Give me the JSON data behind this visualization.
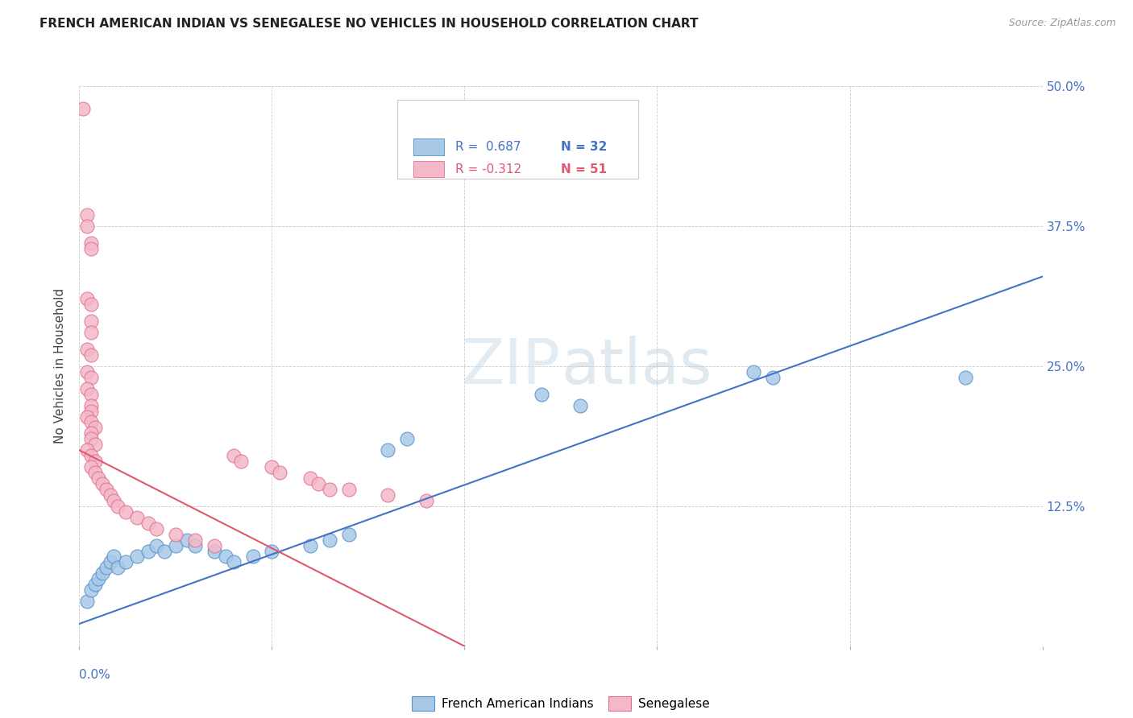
{
  "title": "FRENCH AMERICAN INDIAN VS SENEGALESE NO VEHICLES IN HOUSEHOLD CORRELATION CHART",
  "source": "Source: ZipAtlas.com",
  "ylabel": "No Vehicles in Household",
  "legend_blue_r": "0.687",
  "legend_blue_n": "32",
  "legend_pink_r": "-0.312",
  "legend_pink_n": "51",
  "legend_label_blue": "French American Indians",
  "legend_label_pink": "Senegalese",
  "blue_line_x": [
    0.0,
    0.25
  ],
  "blue_line_y": [
    0.02,
    0.33
  ],
  "pink_line_x": [
    0.0,
    0.1
  ],
  "pink_line_y": [
    0.175,
    0.0
  ],
  "blue_color": "#a8c8e8",
  "pink_color": "#f4b8c8",
  "blue_edge_color": "#5590c8",
  "pink_edge_color": "#e07090",
  "blue_line_color": "#4472c4",
  "pink_line_color": "#e05870",
  "text_color": "#4472c4",
  "watermark_color": "#d8e4f0",
  "xlim": [
    0.0,
    0.25
  ],
  "ylim": [
    0.0,
    0.5
  ],
  "xticks": [
    0.0,
    0.05,
    0.1,
    0.15,
    0.2,
    0.25
  ],
  "yticks": [
    0.0,
    0.125,
    0.25,
    0.375,
    0.5
  ],
  "blue_points": [
    [
      0.002,
      0.04
    ],
    [
      0.003,
      0.05
    ],
    [
      0.004,
      0.055
    ],
    [
      0.005,
      0.06
    ],
    [
      0.006,
      0.065
    ],
    [
      0.007,
      0.07
    ],
    [
      0.008,
      0.075
    ],
    [
      0.009,
      0.08
    ],
    [
      0.01,
      0.07
    ],
    [
      0.012,
      0.075
    ],
    [
      0.015,
      0.08
    ],
    [
      0.018,
      0.085
    ],
    [
      0.02,
      0.09
    ],
    [
      0.022,
      0.085
    ],
    [
      0.025,
      0.09
    ],
    [
      0.028,
      0.095
    ],
    [
      0.03,
      0.09
    ],
    [
      0.035,
      0.085
    ],
    [
      0.038,
      0.08
    ],
    [
      0.04,
      0.075
    ],
    [
      0.045,
      0.08
    ],
    [
      0.05,
      0.085
    ],
    [
      0.06,
      0.09
    ],
    [
      0.065,
      0.095
    ],
    [
      0.07,
      0.1
    ],
    [
      0.08,
      0.175
    ],
    [
      0.085,
      0.185
    ],
    [
      0.12,
      0.225
    ],
    [
      0.13,
      0.215
    ],
    [
      0.175,
      0.245
    ],
    [
      0.18,
      0.24
    ],
    [
      0.23,
      0.24
    ]
  ],
  "pink_points": [
    [
      0.001,
      0.48
    ],
    [
      0.002,
      0.385
    ],
    [
      0.002,
      0.375
    ],
    [
      0.003,
      0.36
    ],
    [
      0.003,
      0.355
    ],
    [
      0.002,
      0.31
    ],
    [
      0.003,
      0.305
    ],
    [
      0.003,
      0.29
    ],
    [
      0.003,
      0.28
    ],
    [
      0.002,
      0.265
    ],
    [
      0.003,
      0.26
    ],
    [
      0.002,
      0.245
    ],
    [
      0.003,
      0.24
    ],
    [
      0.002,
      0.23
    ],
    [
      0.003,
      0.225
    ],
    [
      0.003,
      0.215
    ],
    [
      0.003,
      0.21
    ],
    [
      0.002,
      0.205
    ],
    [
      0.003,
      0.2
    ],
    [
      0.004,
      0.195
    ],
    [
      0.003,
      0.19
    ],
    [
      0.003,
      0.185
    ],
    [
      0.004,
      0.18
    ],
    [
      0.002,
      0.175
    ],
    [
      0.003,
      0.17
    ],
    [
      0.004,
      0.165
    ],
    [
      0.003,
      0.16
    ],
    [
      0.004,
      0.155
    ],
    [
      0.005,
      0.15
    ],
    [
      0.006,
      0.145
    ],
    [
      0.007,
      0.14
    ],
    [
      0.008,
      0.135
    ],
    [
      0.009,
      0.13
    ],
    [
      0.01,
      0.125
    ],
    [
      0.012,
      0.12
    ],
    [
      0.015,
      0.115
    ],
    [
      0.018,
      0.11
    ],
    [
      0.02,
      0.105
    ],
    [
      0.025,
      0.1
    ],
    [
      0.03,
      0.095
    ],
    [
      0.035,
      0.09
    ],
    [
      0.04,
      0.17
    ],
    [
      0.042,
      0.165
    ],
    [
      0.05,
      0.16
    ],
    [
      0.052,
      0.155
    ],
    [
      0.06,
      0.15
    ],
    [
      0.062,
      0.145
    ],
    [
      0.065,
      0.14
    ],
    [
      0.07,
      0.14
    ],
    [
      0.08,
      0.135
    ],
    [
      0.09,
      0.13
    ]
  ]
}
